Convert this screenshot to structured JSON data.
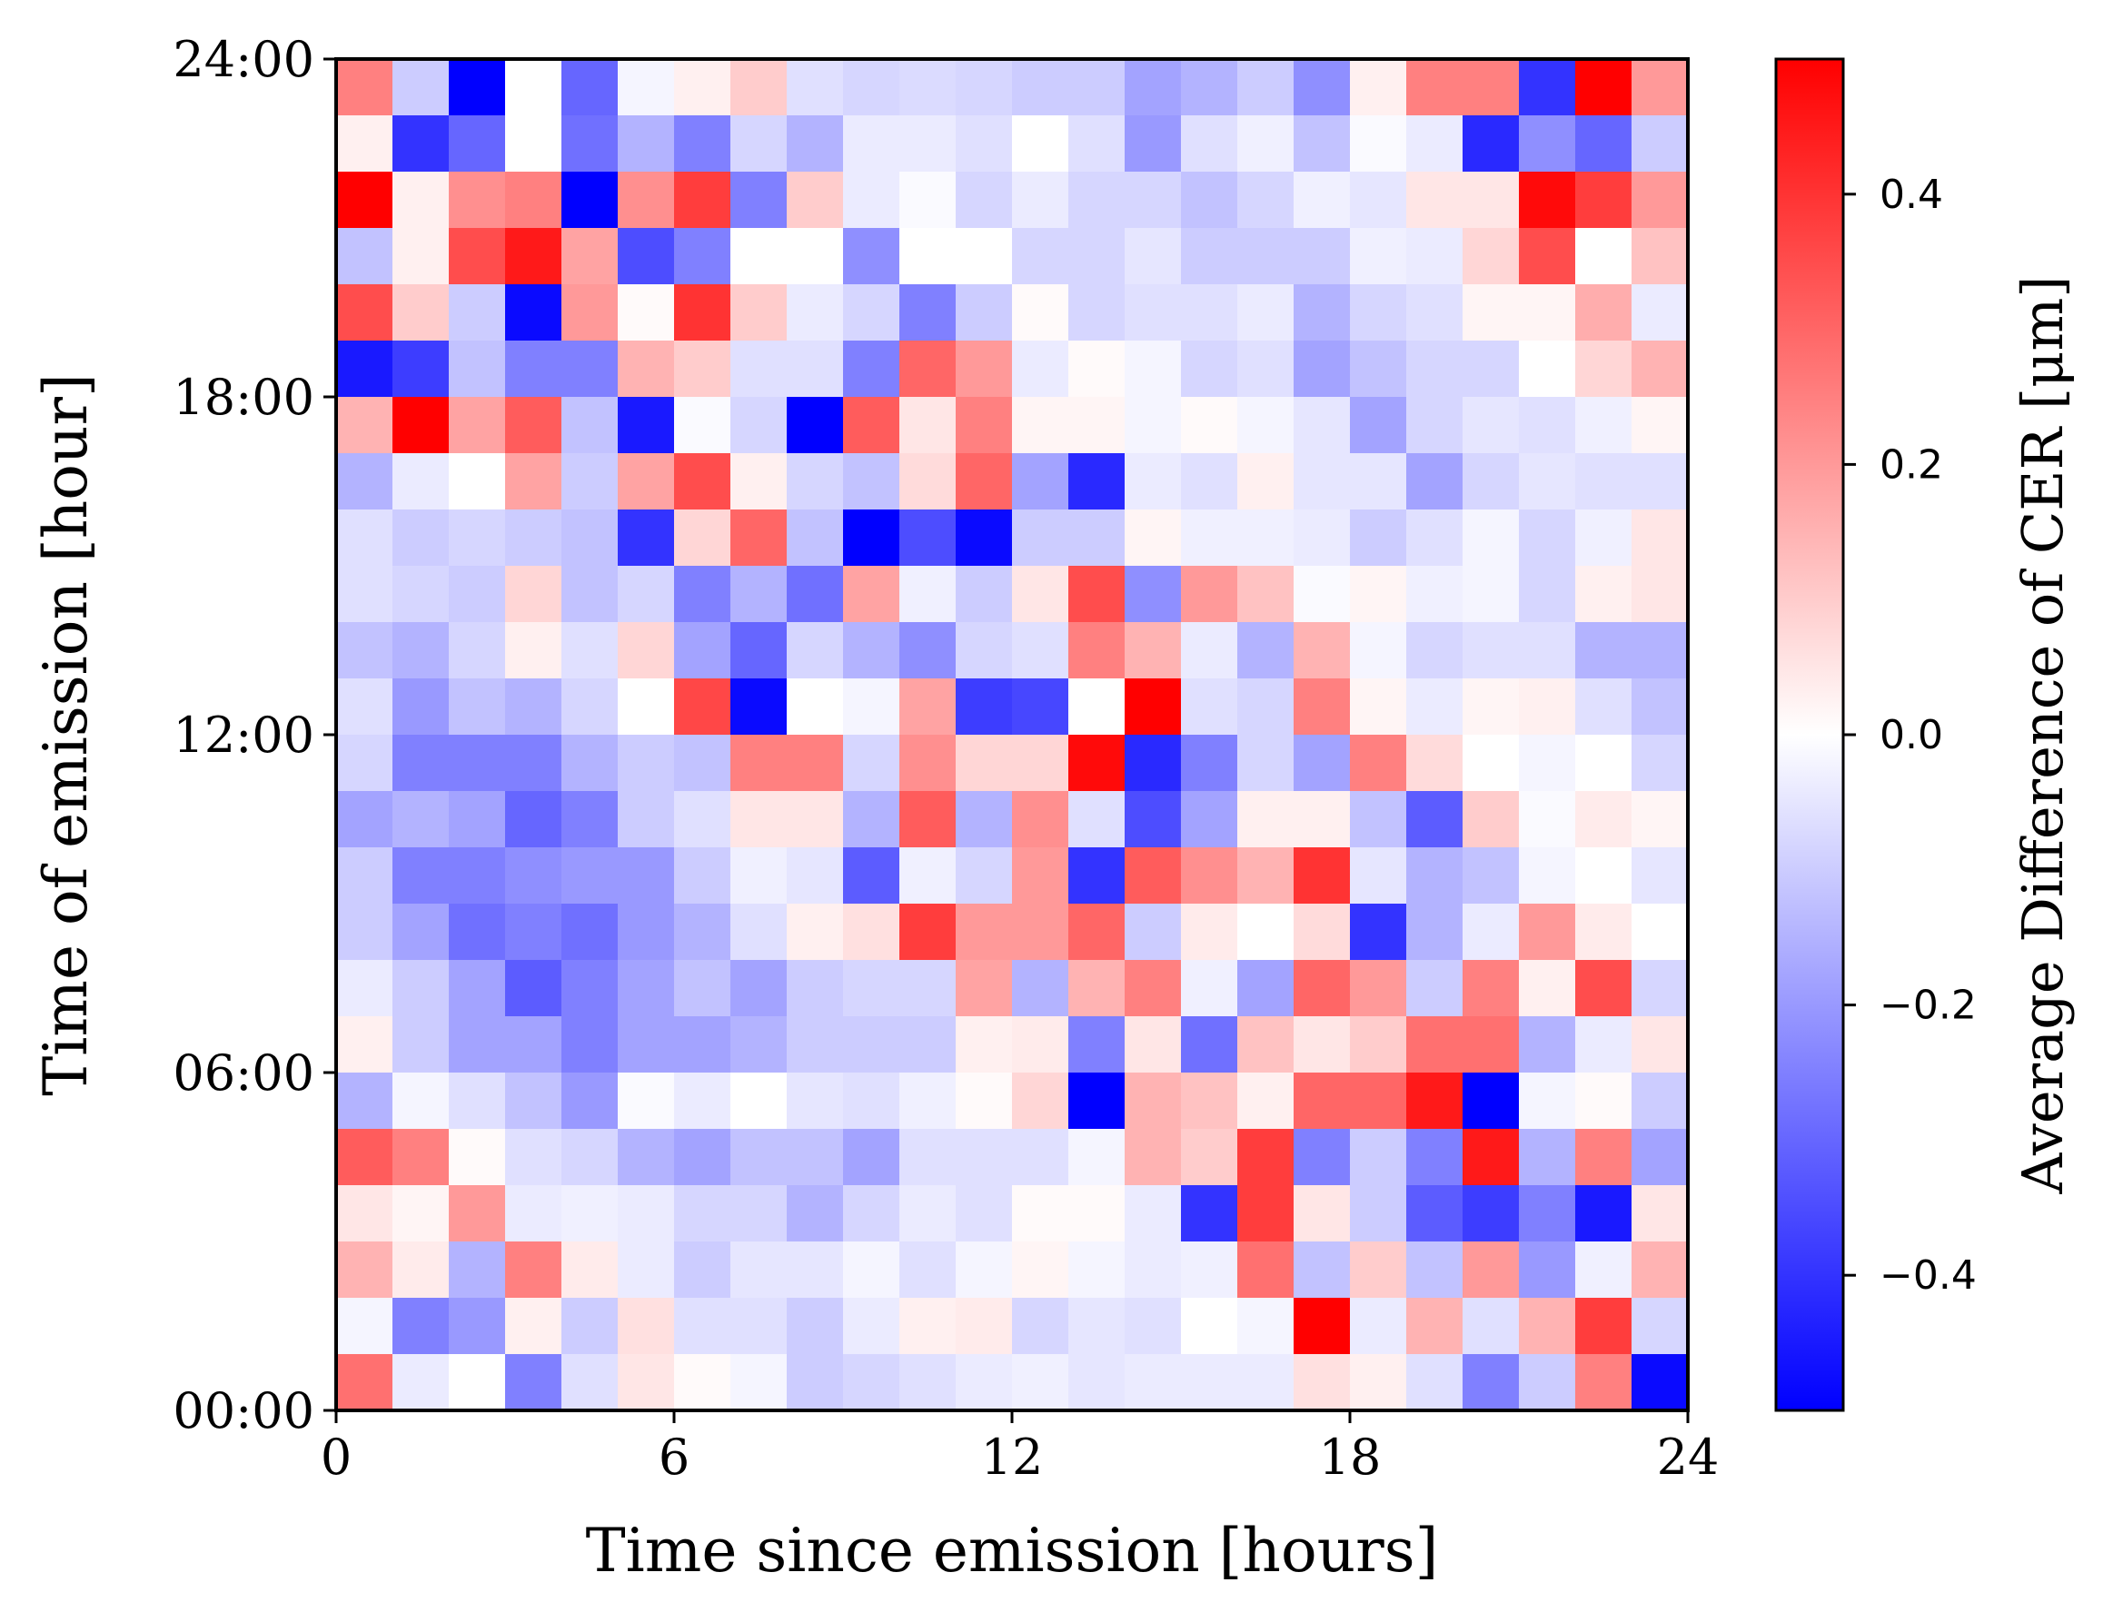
{
  "chart_data": {
    "type": "heatmap",
    "xlabel": "Time since emission [hours]",
    "ylabel": "Time of emission [hour]",
    "x_range": [
      0,
      24
    ],
    "y_range": [
      0,
      24
    ],
    "x_ticks": [
      "0",
      "6",
      "12",
      "18",
      "24"
    ],
    "y_ticks": [
      "00:00",
      "06:00",
      "12:00",
      "18:00",
      "24:00"
    ],
    "colorbar": {
      "label": "Average Difference of CER [μm]",
      "range": [
        -0.5,
        0.5
      ],
      "ticks": [
        "−0.4",
        "−0.2",
        "0.0",
        "0.2",
        "0.4"
      ],
      "colormap": "bwr",
      "low_color": "#0000ff",
      "mid_color": "#ffffff",
      "high_color": "#ff0000"
    },
    "grid": false,
    "rows_top_to_bottom": [
      [
        0.25,
        -0.1,
        -0.5,
        0.0,
        -0.3,
        -0.02,
        0.03,
        0.1,
        -0.06,
        -0.08,
        -0.07,
        -0.08,
        -0.1,
        -0.1,
        -0.18,
        -0.15,
        -0.1,
        -0.22,
        0.03,
        0.25,
        0.25,
        -0.4,
        0.5,
        0.2
      ],
      [
        0.03,
        -0.4,
        -0.3,
        0.0,
        -0.28,
        -0.15,
        -0.25,
        -0.08,
        -0.15,
        -0.04,
        -0.04,
        -0.06,
        0.0,
        -0.06,
        -0.2,
        -0.06,
        -0.03,
        -0.12,
        -0.01,
        -0.04,
        -0.42,
        -0.22,
        -0.3,
        -0.1
      ],
      [
        0.5,
        0.03,
        0.22,
        0.25,
        -0.5,
        0.22,
        0.38,
        -0.25,
        0.1,
        -0.04,
        -0.01,
        -0.08,
        -0.04,
        -0.08,
        -0.08,
        -0.12,
        -0.08,
        -0.03,
        -0.05,
        0.05,
        0.05,
        0.48,
        0.38,
        0.2
      ],
      [
        -0.12,
        0.03,
        0.35,
        0.45,
        0.18,
        -0.35,
        -0.25,
        0.0,
        0.0,
        -0.22,
        0.0,
        0.0,
        -0.08,
        -0.08,
        -0.05,
        -0.1,
        -0.1,
        -0.1,
        -0.03,
        -0.04,
        0.08,
        0.35,
        0.0,
        0.12
      ],
      [
        0.35,
        0.1,
        -0.1,
        -0.48,
        0.2,
        0.01,
        0.4,
        0.1,
        -0.04,
        -0.08,
        -0.25,
        -0.1,
        0.01,
        -0.08,
        -0.06,
        -0.06,
        -0.04,
        -0.15,
        -0.08,
        -0.06,
        0.02,
        0.02,
        0.16,
        -0.04
      ],
      [
        -0.45,
        -0.38,
        -0.12,
        -0.25,
        -0.25,
        0.15,
        0.1,
        -0.06,
        -0.06,
        -0.25,
        0.3,
        0.2,
        -0.04,
        0.01,
        -0.02,
        -0.08,
        -0.06,
        -0.18,
        -0.12,
        -0.08,
        -0.08,
        0.0,
        0.08,
        0.15
      ],
      [
        0.15,
        0.5,
        0.18,
        0.32,
        -0.12,
        -0.45,
        -0.01,
        -0.08,
        -0.5,
        0.32,
        0.05,
        0.25,
        0.02,
        0.02,
        -0.02,
        0.01,
        -0.02,
        -0.05,
        -0.18,
        -0.08,
        -0.05,
        -0.06,
        -0.03,
        0.02
      ],
      [
        -0.15,
        -0.04,
        0.0,
        0.18,
        -0.1,
        0.18,
        0.35,
        0.03,
        -0.08,
        -0.12,
        0.07,
        0.3,
        -0.18,
        -0.42,
        -0.04,
        -0.06,
        0.03,
        -0.05,
        -0.05,
        -0.18,
        -0.08,
        -0.05,
        -0.06,
        -0.06
      ],
      [
        -0.06,
        -0.1,
        -0.08,
        -0.1,
        -0.12,
        -0.4,
        0.08,
        0.3,
        -0.12,
        -0.5,
        -0.35,
        -0.48,
        -0.1,
        -0.1,
        0.02,
        -0.03,
        -0.03,
        -0.04,
        -0.1,
        -0.06,
        -0.02,
        -0.08,
        -0.03,
        0.05
      ],
      [
        -0.06,
        -0.08,
        -0.1,
        0.08,
        -0.12,
        -0.08,
        -0.25,
        -0.15,
        -0.28,
        0.18,
        -0.03,
        -0.1,
        0.05,
        0.35,
        -0.22,
        0.2,
        0.12,
        -0.01,
        0.02,
        -0.03,
        -0.02,
        -0.08,
        0.03,
        0.05
      ],
      [
        -0.12,
        -0.15,
        -0.08,
        0.03,
        -0.06,
        0.08,
        -0.18,
        -0.3,
        -0.08,
        -0.15,
        -0.22,
        -0.08,
        -0.06,
        0.25,
        0.15,
        -0.04,
        -0.15,
        0.15,
        -0.02,
        -0.08,
        -0.06,
        -0.06,
        -0.15,
        -0.15
      ],
      [
        -0.06,
        -0.2,
        -0.12,
        -0.15,
        -0.08,
        0.0,
        0.36,
        -0.48,
        0.0,
        -0.02,
        0.18,
        -0.38,
        -0.36,
        0.0,
        0.5,
        -0.06,
        -0.08,
        0.25,
        0.02,
        -0.04,
        0.02,
        0.03,
        -0.06,
        -0.12
      ],
      [
        -0.08,
        -0.25,
        -0.25,
        -0.25,
        -0.15,
        -0.1,
        -0.12,
        0.25,
        0.25,
        -0.08,
        0.22,
        0.08,
        0.08,
        0.48,
        -0.42,
        -0.25,
        -0.08,
        -0.18,
        0.25,
        0.07,
        0.0,
        -0.02,
        0.0,
        -0.08
      ],
      [
        -0.18,
        -0.15,
        -0.18,
        -0.3,
        -0.25,
        -0.1,
        -0.06,
        0.05,
        0.05,
        -0.15,
        0.32,
        -0.15,
        0.22,
        -0.06,
        -0.35,
        -0.18,
        0.03,
        0.03,
        -0.12,
        -0.32,
        0.1,
        -0.01,
        0.04,
        0.02
      ],
      [
        -0.1,
        -0.25,
        -0.25,
        -0.22,
        -0.2,
        -0.2,
        -0.1,
        -0.03,
        -0.05,
        -0.32,
        -0.03,
        -0.08,
        0.2,
        -0.4,
        0.32,
        0.22,
        0.15,
        0.4,
        -0.05,
        -0.15,
        -0.12,
        -0.02,
        0.0,
        -0.05
      ],
      [
        -0.1,
        -0.18,
        -0.28,
        -0.25,
        -0.28,
        -0.2,
        -0.15,
        -0.06,
        0.03,
        0.06,
        0.38,
        0.2,
        0.2,
        0.3,
        -0.1,
        0.04,
        0.0,
        0.07,
        -0.4,
        -0.15,
        -0.04,
        0.2,
        0.04,
        0.0
      ],
      [
        -0.04,
        -0.1,
        -0.18,
        -0.32,
        -0.25,
        -0.18,
        -0.12,
        -0.18,
        -0.1,
        -0.08,
        -0.08,
        0.18,
        -0.15,
        0.15,
        0.25,
        -0.03,
        -0.18,
        0.3,
        0.2,
        -0.1,
        0.25,
        0.03,
        0.35,
        -0.08
      ],
      [
        0.03,
        -0.1,
        -0.18,
        -0.18,
        -0.25,
        -0.18,
        -0.18,
        -0.15,
        -0.1,
        -0.1,
        -0.1,
        0.03,
        0.04,
        -0.25,
        0.05,
        -0.28,
        0.12,
        0.05,
        0.1,
        0.28,
        0.28,
        -0.15,
        -0.04,
        0.05
      ],
      [
        -0.15,
        -0.02,
        -0.06,
        -0.12,
        -0.2,
        -0.01,
        -0.04,
        0.0,
        -0.05,
        -0.06,
        -0.03,
        0.01,
        0.08,
        -0.5,
        0.15,
        0.12,
        0.03,
        0.3,
        0.3,
        0.45,
        -0.5,
        -0.02,
        0.01,
        -0.1
      ],
      [
        0.32,
        0.25,
        0.01,
        -0.06,
        -0.08,
        -0.15,
        -0.18,
        -0.12,
        -0.12,
        -0.18,
        -0.06,
        -0.06,
        -0.06,
        -0.02,
        0.15,
        0.1,
        0.38,
        -0.25,
        -0.1,
        -0.25,
        0.45,
        -0.15,
        0.25,
        -0.18
      ],
      [
        0.05,
        0.02,
        0.2,
        -0.04,
        -0.03,
        -0.04,
        -0.08,
        -0.08,
        -0.15,
        -0.08,
        -0.04,
        -0.06,
        0.01,
        0.01,
        -0.04,
        -0.4,
        0.38,
        0.05,
        -0.1,
        -0.32,
        -0.38,
        -0.25,
        -0.45,
        0.05
      ],
      [
        0.15,
        0.04,
        -0.15,
        0.25,
        0.04,
        -0.04,
        -0.1,
        -0.05,
        -0.05,
        -0.02,
        -0.06,
        -0.02,
        0.02,
        -0.02,
        -0.04,
        -0.03,
        0.28,
        -0.12,
        0.1,
        -0.12,
        0.2,
        -0.2,
        -0.03,
        0.15
      ],
      [
        -0.02,
        -0.25,
        -0.2,
        0.03,
        -0.1,
        0.06,
        -0.06,
        -0.06,
        -0.1,
        -0.04,
        0.03,
        0.04,
        -0.08,
        -0.05,
        -0.06,
        0.0,
        -0.02,
        0.5,
        -0.04,
        0.15,
        -0.06,
        0.15,
        0.38,
        -0.08
      ],
      [
        0.28,
        -0.04,
        0.0,
        -0.25,
        -0.06,
        0.05,
        0.01,
        -0.02,
        -0.1,
        -0.08,
        -0.06,
        -0.04,
        -0.03,
        -0.05,
        -0.04,
        -0.04,
        -0.04,
        0.06,
        0.03,
        -0.06,
        -0.25,
        -0.1,
        0.25,
        -0.48
      ]
    ]
  }
}
